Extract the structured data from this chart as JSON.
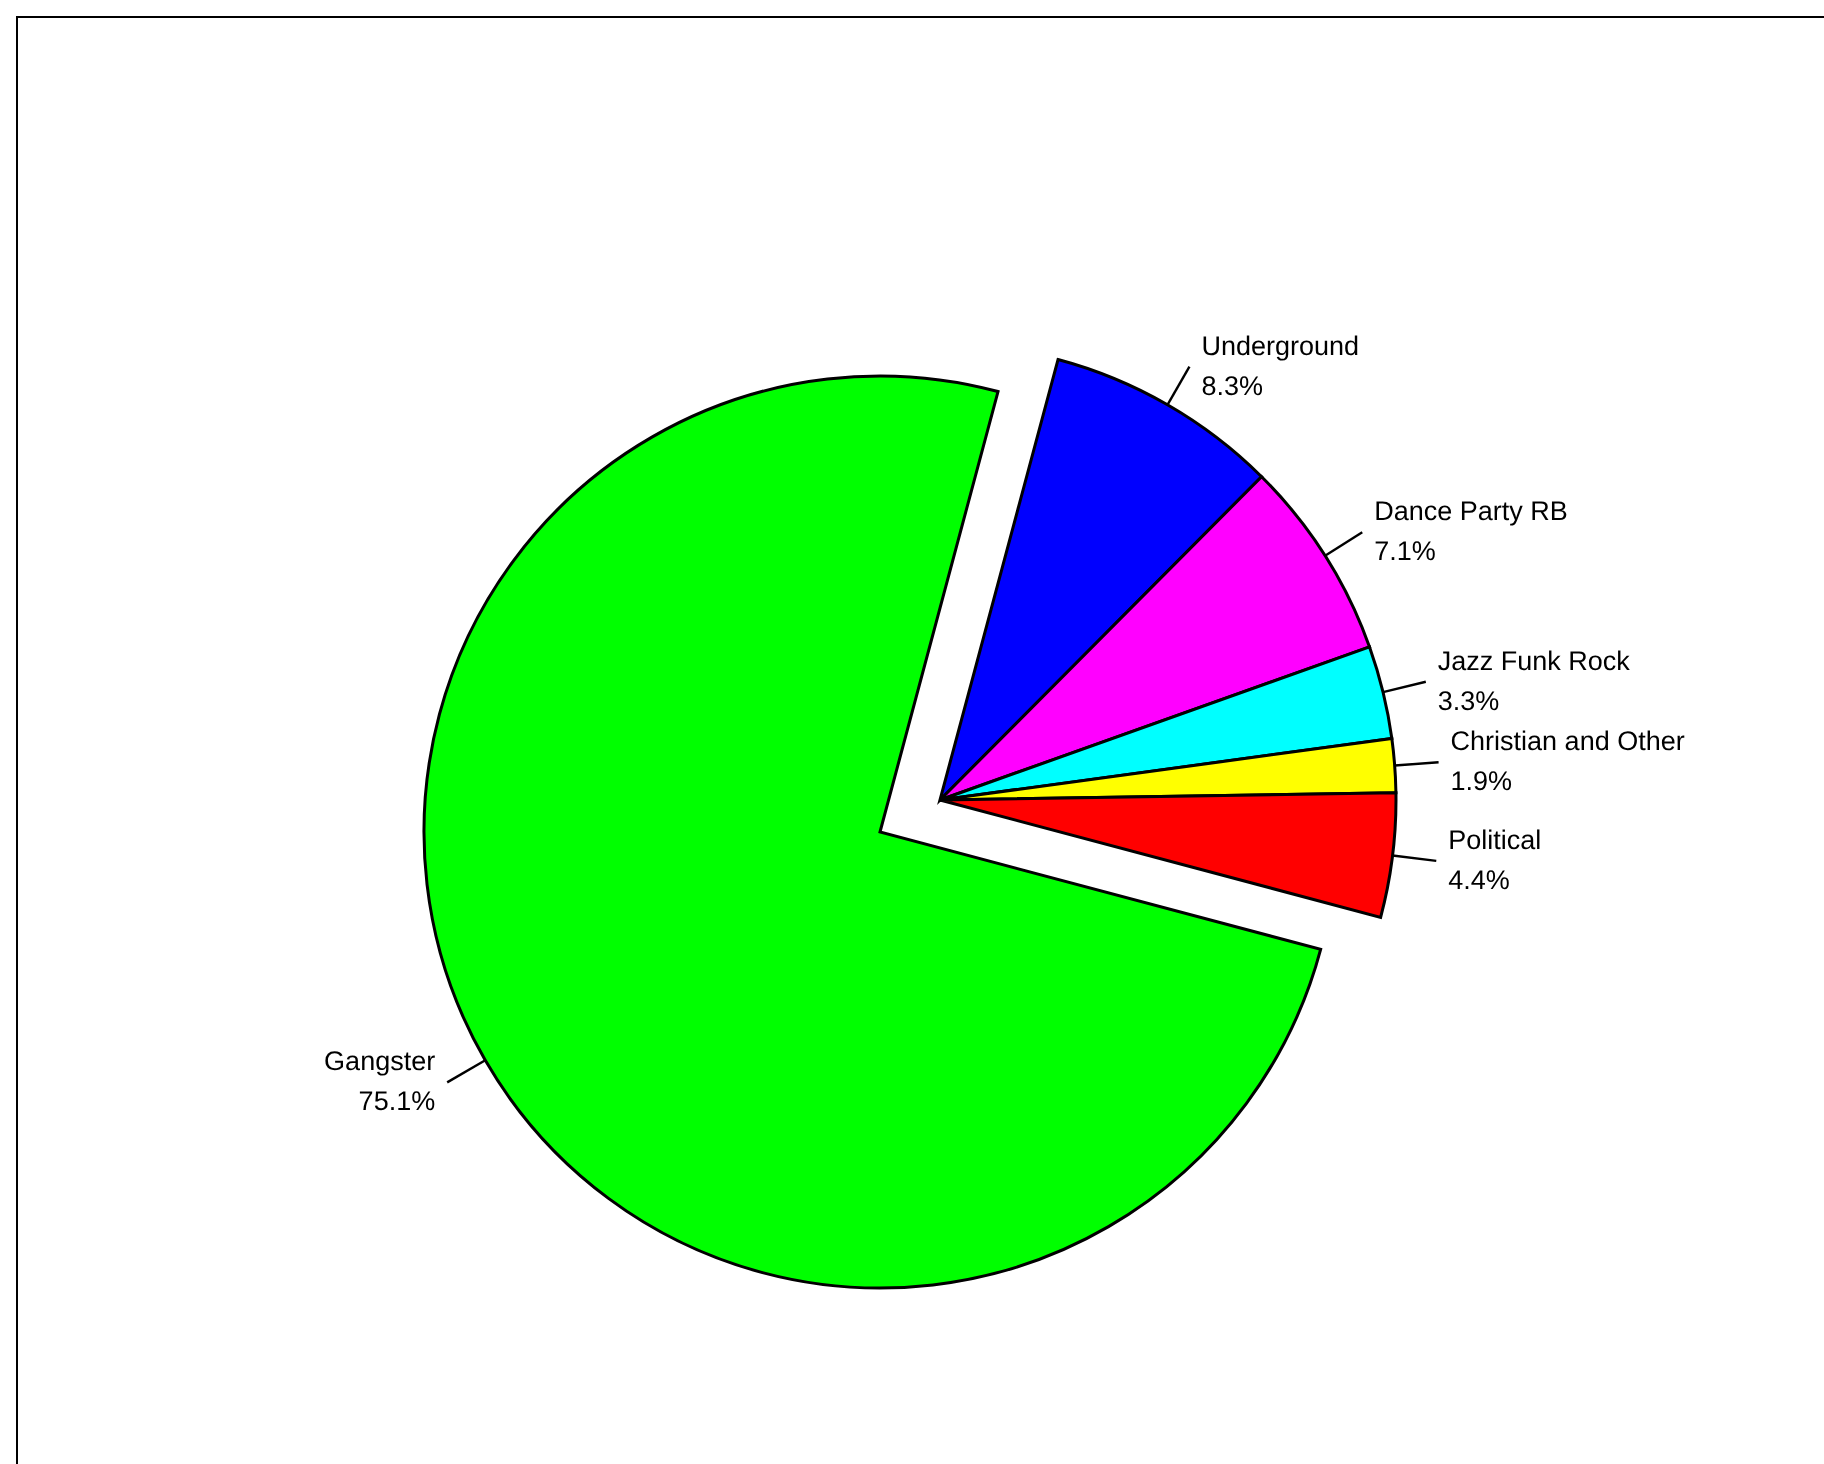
{
  "chart_data": {
    "type": "pie",
    "categories": [
      "Underground",
      "Dance Party RB",
      "Jazz Funk Rock",
      "Christian and Other",
      "Political",
      "Gangster"
    ],
    "values": [
      8.3,
      7.1,
      3.3,
      1.9,
      4.4,
      75.1
    ],
    "colors": [
      "#0000ff",
      "#ff00ff",
      "#00ffff",
      "#ffff00",
      "#ff0000",
      "#00ff00"
    ],
    "value_labels": [
      "8.3%",
      "7.1%",
      "3.3%",
      "1.9%",
      "4.4%",
      "75.1%"
    ]
  }
}
